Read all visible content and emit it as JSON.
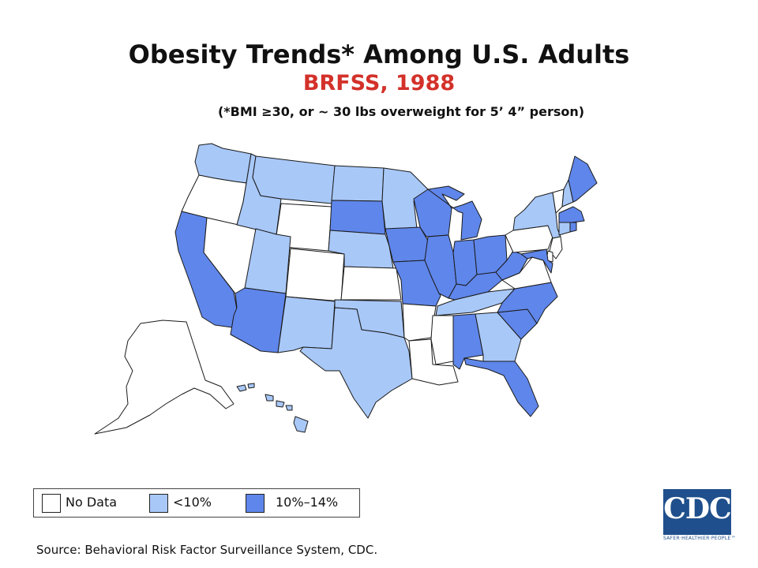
{
  "title": "Obesity Trends* Among U.S. Adults",
  "subtitle": "BRFSS, 1988",
  "note": "(*BMI ≥30, or ~ 30 lbs overweight for 5’ 4” person)",
  "source": "Source: Behavioral Risk Factor Surveillance System, CDC.",
  "legend": [
    {
      "key": "nodata",
      "label": "No Data",
      "color": "#ffffff"
    },
    {
      "key": "lt10",
      "label": "<10%",
      "color": "#a8c8f8"
    },
    {
      "key": "p10to14",
      "label": "10%–14%",
      "color": "#5f86ea"
    }
  ],
  "logo": {
    "text": "CDC",
    "tagline": "SAFER·HEALTHIER·PEOPLE™",
    "color": "#1f4f8c"
  },
  "states": {
    "nodata": [
      "OR",
      "NV",
      "WY",
      "CO",
      "KS",
      "AR",
      "MS",
      "LA",
      "AK",
      "PA",
      "NJ",
      "VT",
      "VA",
      "DE"
    ],
    "lt10": [
      "WA",
      "ID",
      "MT",
      "ND",
      "MN",
      "NE",
      "UT",
      "NM",
      "TX",
      "OK",
      "TN",
      "GA",
      "NY",
      "NH",
      "CT",
      "HI"
    ],
    "p10to14": [
      "CA",
      "AZ",
      "SD",
      "IA",
      "MO",
      "WI",
      "IL",
      "IN",
      "MI",
      "OH",
      "KY",
      "WV",
      "NC",
      "SC",
      "AL",
      "FL",
      "ME",
      "MA",
      "RI",
      "MD"
    ]
  }
}
